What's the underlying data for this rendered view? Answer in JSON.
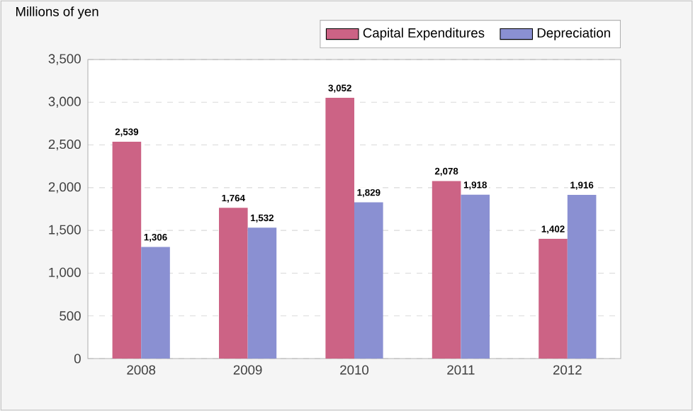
{
  "chart_data": {
    "type": "bar",
    "ylabel": "Millions of yen",
    "categories": [
      "2008",
      "2009",
      "2010",
      "2011",
      "2012"
    ],
    "series": [
      {
        "name": "Capital Expenditures",
        "color": "#cc6385",
        "values": [
          2539,
          1764,
          3052,
          2078,
          1402
        ],
        "value_labels": [
          "2,539",
          "1,764",
          "3,052",
          "2,078",
          "1,402"
        ]
      },
      {
        "name": "Depreciation",
        "color": "#8a90d2",
        "values": [
          1306,
          1532,
          1829,
          1918,
          1916
        ],
        "value_labels": [
          "1,306",
          "1,532",
          "1,829",
          "1,918",
          "1,916"
        ]
      }
    ],
    "ylim": [
      0,
      3500
    ],
    "yticks": [
      0,
      {
        "value": 500,
        "label": "500"
      },
      {
        "value": 1000,
        "label": "1,000"
      },
      {
        "value": 1500,
        "label": "1,500"
      },
      {
        "value": 2000,
        "label": "2,000"
      },
      {
        "value": 2500,
        "label": "2,500"
      },
      {
        "value": 3000,
        "label": "3,000"
      },
      {
        "value": 3500,
        "label": "3,500"
      }
    ],
    "grid": "y",
    "legend": "top right"
  }
}
